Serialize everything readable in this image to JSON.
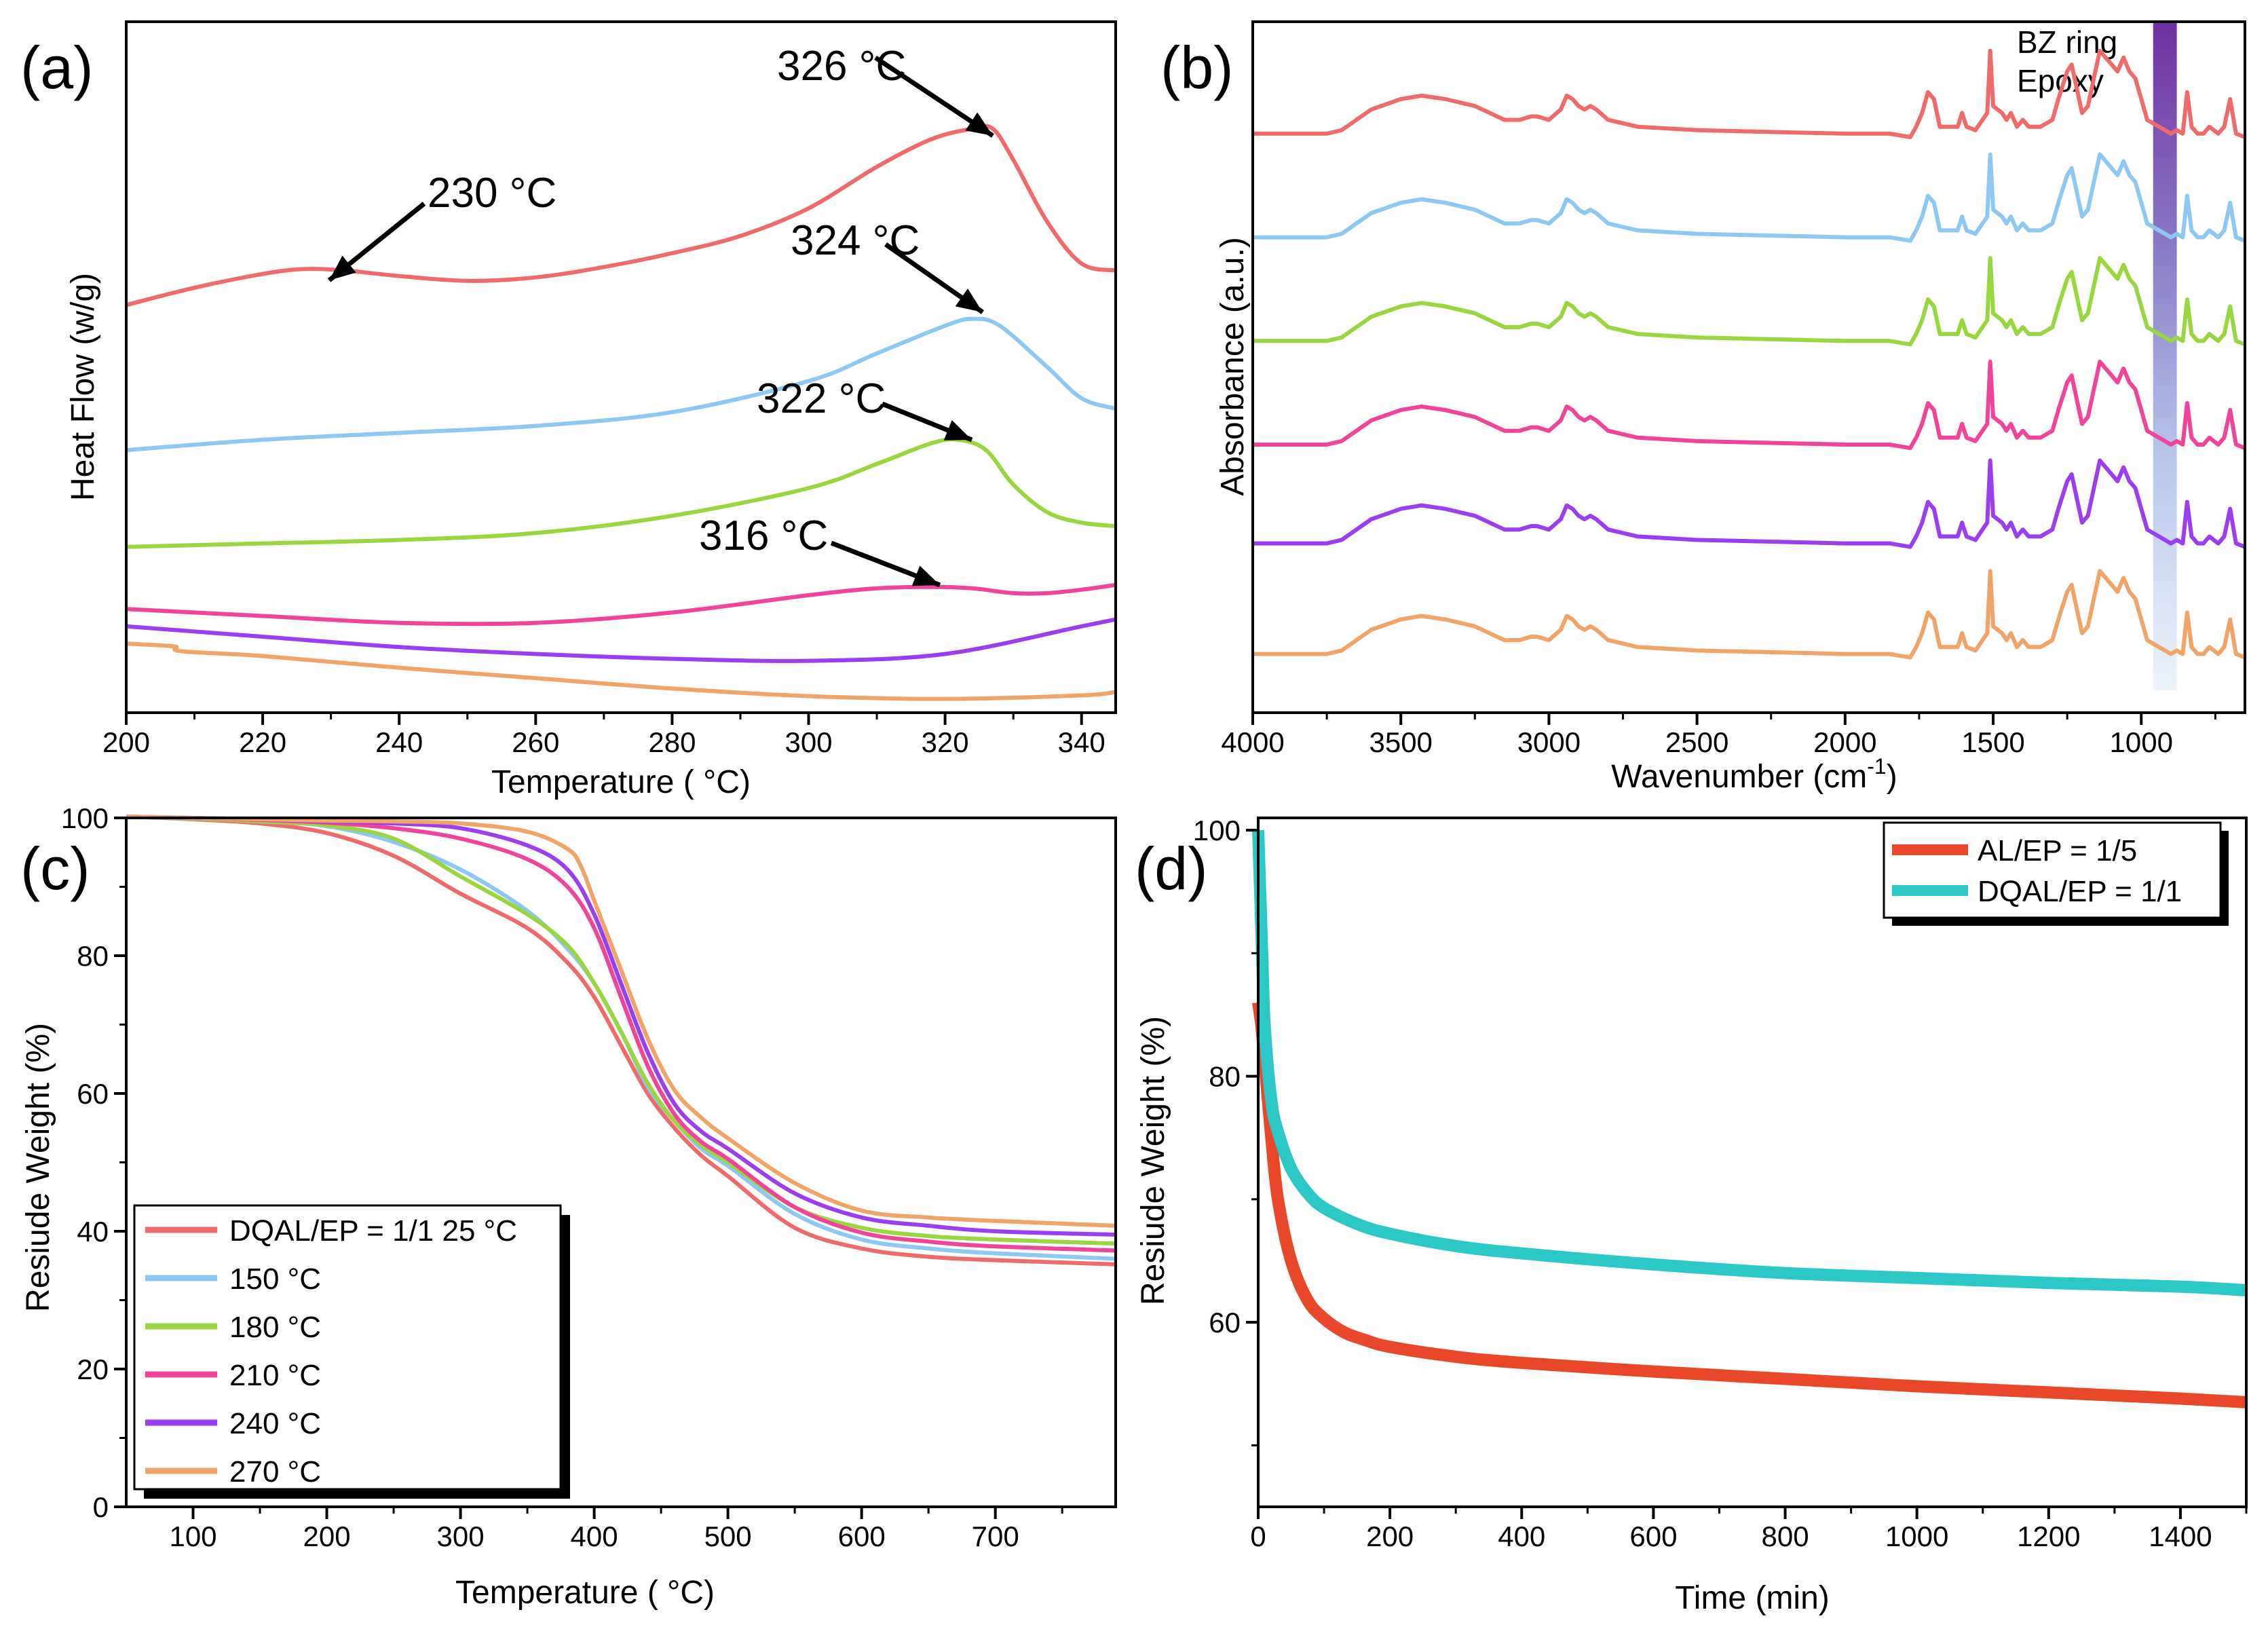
{
  "figure": {
    "colors": {
      "red": "#ef6a6a",
      "blue": "#8cc8f2",
      "green": "#9ad63f",
      "pink": "#f0449a",
      "purple": "#9a3ef0",
      "orange": "#f0a468",
      "band_top": "#7030a0",
      "band_bottom": "#eef3fa",
      "d_red": "#e8472a",
      "d_teal": "#2cc8c8"
    }
  },
  "chart_data": [
    {
      "panel": "(a)",
      "type": "line",
      "title": "",
      "xlabel": "Temperature ( °C)",
      "ylabel": "Heat Flow (w/g)",
      "xlim": [
        200,
        345
      ],
      "ylim": [
        0,
        100
      ],
      "xticks": [
        200,
        220,
        240,
        260,
        280,
        300,
        320,
        340
      ],
      "yticks_shown": false,
      "series": [
        {
          "name": "DQAL/EP = 1/1 25 °C",
          "color": "red",
          "x": [
            200,
            210,
            220,
            226,
            232,
            240,
            250,
            260,
            270,
            280,
            290,
            300,
            310,
            318,
            324,
            327,
            330,
            335,
            340,
            345
          ],
          "y": [
            59,
            61.5,
            63.5,
            64.2,
            64,
            63.2,
            62.5,
            63,
            64.5,
            66.5,
            69,
            73,
            79,
            83,
            84.5,
            84.5,
            80,
            71,
            65,
            64
          ]
        },
        {
          "name": "150 °C",
          "color": "blue",
          "x": [
            200,
            220,
            240,
            260,
            280,
            300,
            310,
            320,
            324,
            328,
            335,
            340,
            345
          ],
          "y": [
            38,
            39.5,
            40.5,
            41.5,
            43.5,
            48,
            52,
            56,
            57,
            56,
            50,
            45.5,
            44
          ]
        },
        {
          "name": "180 °C",
          "color": "green",
          "x": [
            200,
            220,
            240,
            260,
            280,
            300,
            310,
            318,
            322,
            326,
            330,
            335,
            340,
            345
          ],
          "y": [
            24,
            24.5,
            25,
            26,
            28.5,
            32.5,
            36,
            39,
            39.5,
            38,
            33,
            29,
            27.5,
            27
          ]
        },
        {
          "name": "210 °C",
          "color": "pink",
          "x": [
            200,
            220,
            240,
            260,
            280,
            300,
            310,
            318,
            324,
            330,
            335,
            340,
            345
          ],
          "y": [
            15,
            14,
            13,
            13,
            14.5,
            17,
            18,
            18.2,
            18,
            17.3,
            17.3,
            17.8,
            18.5
          ]
        },
        {
          "name": "240 °C",
          "color": "purple",
          "x": [
            200,
            220,
            240,
            260,
            280,
            300,
            320,
            340,
            345
          ],
          "y": [
            12.5,
            11,
            9.5,
            8.5,
            7.8,
            7.5,
            8.5,
            12.5,
            13.5
          ]
        },
        {
          "name": "270 °C",
          "color": "orange",
          "x": [
            200,
            207,
            208,
            220,
            240,
            260,
            280,
            300,
            320,
            340,
            345
          ],
          "y": [
            10,
            9.6,
            8.9,
            8.2,
            6.5,
            5,
            3.5,
            2.4,
            2,
            2.5,
            3
          ]
        }
      ],
      "annotations": [
        {
          "text": "326 °C",
          "series": 0
        },
        {
          "text": "324 °C",
          "series": 1
        },
        {
          "text": "322 °C",
          "series": 2
        },
        {
          "text": "316 °C",
          "series": 3
        },
        {
          "text": "230 °C",
          "series": 0
        }
      ]
    },
    {
      "panel": "(b)",
      "type": "line",
      "title": "",
      "xlabel": "Wavenumber (cm",
      "xlabel_sup": "-1",
      "xlabel_end": ")",
      "ylabel": "Absorbance (a.u.)",
      "xlim": [
        4000,
        650
      ],
      "xticks": [
        4000,
        3500,
        3000,
        2500,
        2000,
        1500,
        1000
      ],
      "yticks_shown": false,
      "band_labels": [
        "BZ ring",
        "Epoxy"
      ],
      "band_range": [
        960,
        880
      ],
      "offsets": [
        83.8,
        68.8,
        53.8,
        38.8,
        24.5,
        8.5
      ],
      "x": [
        4000,
        3750,
        3700,
        3600,
        3500,
        3430,
        3350,
        3250,
        3150,
        3100,
        3060,
        3040,
        3000,
        2960,
        2940,
        2920,
        2900,
        2880,
        2860,
        2840,
        2800,
        2700,
        2500,
        2300,
        2000,
        1850,
        1780,
        1760,
        1740,
        1720,
        1700,
        1680,
        1660,
        1620,
        1605,
        1590,
        1560,
        1520,
        1510,
        1500,
        1470,
        1455,
        1440,
        1420,
        1400,
        1380,
        1360,
        1340,
        1300,
        1280,
        1250,
        1235,
        1215,
        1200,
        1180,
        1160,
        1140,
        1120,
        1100,
        1080,
        1060,
        1040,
        1020,
        1000,
        980,
        960,
        940,
        920,
        900,
        880,
        860,
        845,
        830,
        810,
        790,
        770,
        740,
        720,
        700,
        680,
        650
      ],
      "y": [
        0,
        0,
        0.5,
        3.5,
        5,
        5.5,
        5,
        4,
        2,
        2,
        2.5,
        2.5,
        2,
        3.5,
        5.5,
        5,
        4,
        3.5,
        4,
        3.5,
        2,
        1,
        0.5,
        0.3,
        0,
        0,
        -0.5,
        1,
        3,
        6,
        5,
        1,
        1,
        1,
        3,
        1,
        0.5,
        3,
        12,
        4,
        3,
        2,
        3,
        1,
        2,
        1,
        1,
        1,
        2,
        5,
        9,
        10,
        6,
        3,
        4,
        8,
        12,
        11,
        10,
        9,
        11,
        9,
        8,
        5,
        2,
        1.5,
        1,
        0.5,
        0,
        0.5,
        0,
        6,
        1,
        0,
        0,
        1,
        0,
        1,
        5,
        0,
        -0.5
      ]
    },
    {
      "panel": "(c)",
      "type": "line",
      "title": "",
      "xlabel": "Temperature ( °C)",
      "ylabel": "Resiude Weight (%)",
      "xlim": [
        50,
        790
      ],
      "ylim": [
        0,
        100
      ],
      "xticks": [
        100,
        200,
        300,
        400,
        500,
        600,
        700
      ],
      "yticks": [
        0,
        20,
        40,
        60,
        80,
        100
      ],
      "legend_position": "bottom-left",
      "series": [
        {
          "name": "DQAL/EP = 1/1 25 °C",
          "color": "red",
          "x": [
            50,
            100,
            150,
            200,
            250,
            300,
            350,
            380,
            400,
            420,
            440,
            460,
            480,
            500,
            550,
            600,
            650,
            700,
            790
          ],
          "y": [
            100.2,
            99.8,
            99.2,
            97.8,
            94.5,
            89,
            84,
            79,
            74,
            67,
            60,
            55,
            51,
            48,
            40.5,
            37.5,
            36.3,
            35.8,
            35.2
          ]
        },
        {
          "name": "150 °C",
          "color": "blue",
          "x": [
            50,
            100,
            150,
            200,
            250,
            300,
            350,
            380,
            400,
            420,
            440,
            460,
            480,
            500,
            550,
            600,
            650,
            700,
            790
          ],
          "y": [
            100.2,
            99.9,
            99.5,
            98.8,
            96.5,
            92.5,
            86.5,
            81,
            76,
            69,
            61,
            56,
            52,
            49.5,
            42.5,
            38.8,
            37.5,
            36.8,
            36
          ]
        },
        {
          "name": "180 °C",
          "color": "green",
          "x": [
            50,
            100,
            150,
            200,
            250,
            300,
            350,
            380,
            400,
            420,
            440,
            460,
            480,
            500,
            550,
            600,
            650,
            700,
            790
          ],
          "y": [
            100.2,
            99.9,
            99.5,
            98.9,
            97,
            91.5,
            86,
            81.5,
            76,
            69,
            61.5,
            56,
            52.5,
            50,
            43.5,
            40.5,
            39.3,
            38.8,
            38.2
          ]
        },
        {
          "name": "210 °C",
          "color": "pink",
          "x": [
            50,
            100,
            150,
            200,
            250,
            300,
            350,
            380,
            400,
            420,
            440,
            460,
            480,
            500,
            550,
            600,
            650,
            700,
            790
          ],
          "y": [
            100.2,
            100,
            99.7,
            99.3,
            98.5,
            97,
            94,
            90,
            84,
            74,
            64,
            57,
            53,
            50.5,
            43.5,
            39.8,
            38.5,
            37.8,
            37.2
          ]
        },
        {
          "name": "240 °C",
          "color": "purple",
          "x": [
            50,
            100,
            150,
            200,
            250,
            300,
            350,
            380,
            400,
            420,
            440,
            460,
            480,
            500,
            550,
            600,
            650,
            700,
            790
          ],
          "y": [
            100.2,
            100,
            99.8,
            99.5,
            99.2,
            98.5,
            96,
            92.5,
            86,
            76,
            66,
            58.5,
            54.5,
            52,
            45.5,
            42,
            40.8,
            40,
            39.5
          ]
        },
        {
          "name": "270 °C",
          "color": "orange",
          "x": [
            50,
            100,
            150,
            200,
            250,
            300,
            350,
            380,
            390,
            400,
            420,
            440,
            460,
            480,
            500,
            550,
            600,
            650,
            700,
            790
          ],
          "y": [
            100.2,
            100,
            99.8,
            99.6,
            99.5,
            99.2,
            98,
            95.5,
            93,
            88,
            78,
            68,
            60.5,
            56.5,
            53.5,
            47,
            43,
            42,
            41.5,
            40.8
          ]
        }
      ]
    },
    {
      "panel": "(d)",
      "type": "line",
      "title": "",
      "xlabel": "Time (min)",
      "ylabel": "Resiude Weight (%)",
      "xlim": [
        0,
        1500
      ],
      "ylim": [
        45,
        101
      ],
      "xticks": [
        0,
        200,
        400,
        600,
        800,
        1000,
        1200,
        1400
      ],
      "yticks": [
        60,
        80,
        100
      ],
      "legend_position": "top-right",
      "series": [
        {
          "name": "AL/EP = 1/5",
          "color": "d_red",
          "x": [
            0,
            5,
            10,
            20,
            30,
            50,
            75,
            100,
            130,
            160,
            200,
            300,
            400,
            600,
            800,
            1000,
            1200,
            1400,
            1500
          ],
          "y": [
            86,
            84,
            81,
            75,
            70,
            65,
            61.8,
            60.3,
            59.2,
            58.6,
            58,
            57.2,
            56.7,
            56,
            55.4,
            54.8,
            54.3,
            53.8,
            53.5
          ]
        },
        {
          "name": "DQAL/EP = 1/1",
          "color": "d_teal",
          "x": [
            0,
            3,
            6,
            10,
            20,
            30,
            50,
            75,
            100,
            150,
            200,
            300,
            400,
            600,
            800,
            1000,
            1200,
            1400,
            1500
          ],
          "y": [
            100,
            95,
            90,
            84,
            78,
            75.5,
            72.5,
            70.5,
            69.3,
            68,
            67.2,
            66.2,
            65.6,
            64.7,
            64,
            63.6,
            63.2,
            62.9,
            62.6
          ]
        }
      ]
    }
  ]
}
